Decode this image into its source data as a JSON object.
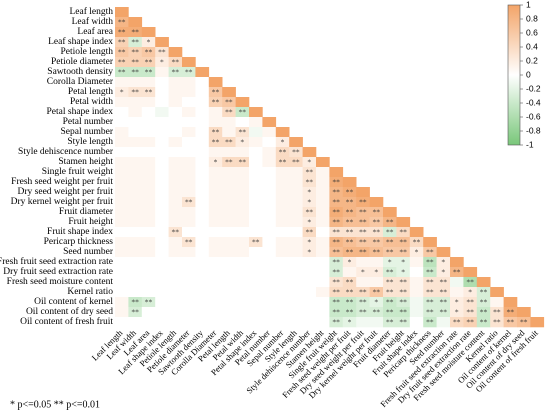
{
  "chart_data": {
    "type": "heatmap",
    "variables": [
      "Leaf length",
      "Leaf width",
      "Leaf area",
      "Leaf shape index",
      "Petiole length",
      "Petiole diameter",
      "Sawtooth density",
      "Corolla Diameter",
      "Petal length",
      "Petal width",
      "Petal shape index",
      "Petal number",
      "Sepal number",
      "Style length",
      "Style dehiscence number",
      "Stamen height",
      "Single fruit weight",
      "Fresh seed weight per fruit",
      "Dry seed weight per fruit",
      "Dry kernel weight per fruit",
      "Fruit diameter",
      "Fruit height",
      "Fruit shape index",
      "Pericarp thickness",
      "Seed number",
      "Fresh fruit seed extraction rate",
      "Dry fruit seed extraction rate",
      "Fresh seed moisture content",
      "Kernel ratio",
      "Oil content of kernel",
      "Oil content of dry seed",
      "Oil content of fresh fruit"
    ],
    "values": [
      [
        1
      ],
      [
        0.8,
        1
      ],
      [
        0.9,
        0.9,
        1
      ],
      [
        0.5,
        -0.3,
        0.2,
        1
      ],
      [
        0.6,
        0.5,
        0.6,
        0.3,
        1
      ],
      [
        0.5,
        0.5,
        0.5,
        0.2,
        0.4,
        1
      ],
      [
        -0.4,
        -0.4,
        -0.4,
        0.1,
        -0.3,
        -0.3,
        1
      ],
      [
        0.1,
        0.1,
        0.1,
        0,
        0.1,
        0.1,
        0,
        1
      ],
      [
        0.2,
        0.3,
        0.3,
        0,
        0.1,
        0.1,
        0,
        0.6,
        1
      ],
      [
        0.1,
        0.1,
        0.1,
        0,
        0.1,
        0,
        0,
        0.5,
        0.6,
        1
      ],
      [
        0,
        0.1,
        0,
        -0.1,
        0,
        0.1,
        0,
        0.1,
        0.4,
        -0.4,
        1
      ],
      [
        0,
        0,
        0,
        0,
        0,
        0,
        0,
        0.1,
        0.1,
        0,
        0.1,
        1
      ],
      [
        0.1,
        0,
        0,
        0,
        0,
        0.1,
        0,
        0.4,
        0.1,
        0.3,
        -0.1,
        0.1,
        1
      ],
      [
        0.1,
        0.1,
        0.1,
        0,
        0.1,
        0,
        0,
        0.4,
        0.4,
        0.2,
        0.1,
        0,
        0.2,
        1
      ],
      [
        0,
        0,
        0,
        0,
        0,
        0,
        0,
        0.1,
        0.1,
        0.1,
        0,
        0.1,
        0.4,
        0.3,
        1
      ],
      [
        0.1,
        0.1,
        0.1,
        0,
        0.1,
        0.1,
        0,
        0.2,
        0.4,
        0.4,
        0,
        0.1,
        0.4,
        0.4,
        0.2,
        1
      ],
      [
        0.1,
        0.1,
        0.1,
        0,
        0.1,
        0.1,
        0,
        0.1,
        0.1,
        0.1,
        0,
        0,
        0.1,
        0.1,
        0.3,
        0.1,
        1
      ],
      [
        0.1,
        0.1,
        0.1,
        0,
        0.1,
        0.1,
        0,
        0.1,
        0.1,
        0.1,
        0,
        0,
        0.1,
        0.1,
        0.3,
        0.1,
        0.9,
        1
      ],
      [
        0.1,
        0.1,
        0.1,
        0,
        0.1,
        0.1,
        0,
        0.1,
        0.1,
        0.1,
        0,
        0,
        0.1,
        0.1,
        0.2,
        0.1,
        0.8,
        0.9,
        1
      ],
      [
        0.1,
        0.1,
        0.1,
        0,
        0.1,
        0.3,
        0,
        0.1,
        0.1,
        0.1,
        0,
        0,
        0.1,
        0.1,
        0.2,
        0.1,
        0.8,
        0.8,
        0.9,
        1
      ],
      [
        0.1,
        0.1,
        0.1,
        0,
        0.1,
        0.1,
        0,
        0.1,
        0.1,
        0.1,
        0,
        0,
        0.1,
        0.1,
        0.3,
        0.1,
        0.9,
        0.8,
        0.7,
        0.7,
        1
      ],
      [
        0.1,
        0.1,
        0.1,
        0,
        0.1,
        0.1,
        0,
        0.1,
        0.1,
        0.1,
        0,
        0,
        0.1,
        0.1,
        0.2,
        0.1,
        0.8,
        0.7,
        0.7,
        0.6,
        0.8,
        1
      ],
      [
        0,
        0,
        0,
        0,
        0.3,
        0,
        0,
        0,
        0,
        0,
        0,
        0,
        0,
        0,
        0.4,
        0,
        0.3,
        0.3,
        0.3,
        0.3,
        -0.3,
        0.4,
        1
      ],
      [
        0.1,
        0.1,
        0.1,
        0,
        0.1,
        0.3,
        0,
        0.1,
        0.1,
        0.1,
        0.3,
        0,
        0.1,
        0.1,
        0.2,
        0.1,
        0.8,
        0.7,
        0.6,
        0.6,
        0.7,
        0.7,
        0.4,
        1
      ],
      [
        0.1,
        0.1,
        0.1,
        0,
        0.1,
        0.1,
        0,
        0.1,
        0.1,
        0.1,
        0,
        0,
        0.1,
        0.1,
        0.2,
        0.1,
        0.7,
        0.8,
        0.8,
        0.7,
        0.6,
        0.6,
        0.2,
        0.6,
        1
      ],
      [
        0,
        0,
        0,
        0,
        0,
        0,
        0,
        0,
        0,
        0,
        0,
        0,
        0,
        0,
        0,
        0,
        -0.3,
        0.2,
        0.1,
        0.1,
        -0.2,
        -0.2,
        0.1,
        -0.5,
        0.2,
        1
      ],
      [
        0,
        0,
        0,
        0,
        0,
        0,
        0,
        0,
        0,
        0,
        0,
        0,
        0,
        0,
        0,
        0,
        -0.3,
        0.1,
        0.2,
        0.2,
        -0.3,
        -0.2,
        0,
        -0.4,
        0.2,
        0.8,
        1
      ],
      [
        0,
        0,
        0,
        0,
        0,
        0,
        0,
        0,
        0,
        0,
        0,
        0,
        0,
        0,
        0,
        0,
        0.3,
        0.4,
        0.1,
        0.1,
        0.3,
        0.3,
        0.1,
        0.3,
        0.3,
        -0.1,
        -0.6,
        1
      ],
      [
        0,
        0,
        0,
        0,
        0,
        0,
        0,
        0,
        0,
        0,
        0,
        0,
        0,
        0,
        0,
        0.1,
        0.4,
        0.4,
        0.4,
        0.6,
        0.3,
        0.3,
        0.1,
        0.3,
        0.3,
        0.1,
        0.2,
        -0.3,
        1
      ],
      [
        0.1,
        -0.4,
        -0.3,
        0,
        0,
        0,
        0,
        0,
        0,
        0,
        0,
        0,
        0,
        0,
        0,
        0,
        -0.4,
        -0.4,
        -0.3,
        -0.2,
        -0.4,
        -0.3,
        -0.1,
        -0.3,
        -0.3,
        0.2,
        0.3,
        -0.3,
        0.1,
        1
      ],
      [
        0.1,
        -0.3,
        0,
        0,
        0,
        0,
        0,
        0,
        0,
        0,
        0,
        0,
        0,
        0,
        0,
        0,
        -0.4,
        -0.4,
        -0.3,
        -0.3,
        -0.4,
        -0.4,
        -0.1,
        -0.3,
        -0.3,
        0.2,
        0.3,
        -0.4,
        0.3,
        0.9,
        1
      ],
      [
        0,
        0,
        0,
        0,
        0,
        0,
        0,
        0,
        0,
        0,
        0,
        0,
        0,
        0,
        0,
        0,
        -0.3,
        -0.2,
        -0.1,
        -0.1,
        -0.3,
        -0.3,
        0,
        -0.4,
        -0.1,
        0.4,
        0.5,
        -0.4,
        0.3,
        0.6,
        0.7,
        1
      ]
    ],
    "significance": [
      [
        null
      ],
      [
        "**",
        null
      ],
      [
        "**",
        "**",
        null
      ],
      [
        "**",
        "**",
        "*",
        null
      ],
      [
        "**",
        "**",
        "**",
        "**",
        null
      ],
      [
        "**",
        "**",
        "**",
        "*",
        "**",
        null
      ],
      [
        "**",
        "**",
        "**",
        null,
        "**",
        "**",
        null
      ],
      [
        null,
        null,
        null,
        null,
        null,
        null,
        null,
        null
      ],
      [
        "*",
        "**",
        "**",
        null,
        null,
        null,
        null,
        "**",
        null
      ],
      [
        null,
        null,
        null,
        null,
        null,
        null,
        null,
        "**",
        "**",
        null
      ],
      [
        null,
        null,
        null,
        null,
        null,
        null,
        null,
        null,
        "**",
        "**",
        null
      ],
      [
        null,
        null,
        null,
        null,
        null,
        null,
        null,
        null,
        null,
        null,
        null,
        null
      ],
      [
        null,
        null,
        null,
        null,
        null,
        null,
        null,
        "**",
        null,
        "**",
        null,
        null,
        null
      ],
      [
        null,
        null,
        null,
        null,
        null,
        null,
        null,
        "**",
        "**",
        "*",
        null,
        null,
        "*",
        null
      ],
      [
        null,
        null,
        null,
        null,
        null,
        null,
        null,
        null,
        null,
        null,
        null,
        null,
        "**",
        "**",
        null
      ],
      [
        null,
        null,
        null,
        null,
        null,
        null,
        null,
        "*",
        "**",
        "**",
        null,
        null,
        "**",
        "**",
        "*",
        null
      ],
      [
        null,
        null,
        null,
        null,
        null,
        null,
        null,
        null,
        null,
        null,
        null,
        null,
        null,
        null,
        "**",
        null,
        null
      ],
      [
        null,
        null,
        null,
        null,
        null,
        null,
        null,
        null,
        null,
        null,
        null,
        null,
        null,
        null,
        "**",
        null,
        "**",
        null
      ],
      [
        null,
        null,
        null,
        null,
        null,
        null,
        null,
        null,
        null,
        null,
        null,
        null,
        null,
        null,
        "*",
        null,
        "**",
        "**",
        null
      ],
      [
        null,
        null,
        null,
        null,
        null,
        "**",
        null,
        null,
        null,
        null,
        null,
        null,
        null,
        null,
        "*",
        null,
        "**",
        "**",
        "**",
        null
      ],
      [
        null,
        null,
        null,
        null,
        null,
        null,
        null,
        null,
        null,
        null,
        null,
        null,
        null,
        null,
        "**",
        null,
        "**",
        "**",
        "**",
        "**",
        null
      ],
      [
        null,
        null,
        null,
        null,
        null,
        null,
        null,
        null,
        null,
        null,
        null,
        null,
        null,
        null,
        "*",
        null,
        "**",
        "**",
        "**",
        "**",
        "**",
        null
      ],
      [
        null,
        null,
        null,
        null,
        "**",
        null,
        null,
        null,
        null,
        null,
        null,
        null,
        null,
        null,
        "**",
        null,
        "**",
        "**",
        "**",
        "**",
        "**",
        "**",
        null
      ],
      [
        null,
        null,
        null,
        null,
        null,
        "**",
        null,
        null,
        null,
        null,
        "**",
        null,
        null,
        null,
        "*",
        null,
        "**",
        "**",
        "**",
        "**",
        "**",
        "**",
        "**",
        null
      ],
      [
        null,
        null,
        null,
        null,
        null,
        null,
        null,
        null,
        null,
        null,
        null,
        null,
        null,
        null,
        "*",
        null,
        "**",
        "**",
        "**",
        "**",
        "**",
        "**",
        "*",
        "**",
        null
      ],
      [
        null,
        null,
        null,
        null,
        null,
        null,
        null,
        null,
        null,
        null,
        null,
        null,
        null,
        null,
        null,
        null,
        "**",
        "*",
        null,
        null,
        "*",
        "*",
        null,
        "**",
        "*",
        null
      ],
      [
        null,
        null,
        null,
        null,
        null,
        null,
        null,
        null,
        null,
        null,
        null,
        null,
        null,
        null,
        null,
        null,
        "**",
        null,
        "*",
        "*",
        "**",
        "*",
        null,
        "**",
        "*",
        "**",
        null
      ],
      [
        null,
        null,
        null,
        null,
        null,
        null,
        null,
        null,
        null,
        null,
        null,
        null,
        null,
        null,
        null,
        null,
        "**",
        "**",
        null,
        null,
        "**",
        "**",
        null,
        "**",
        "**",
        null,
        "**",
        null
      ],
      [
        null,
        null,
        null,
        null,
        null,
        null,
        null,
        null,
        null,
        null,
        null,
        null,
        null,
        null,
        null,
        null,
        "**",
        "**",
        "**",
        "**",
        "**",
        "**",
        null,
        "**",
        "**",
        null,
        "*",
        "**",
        null
      ],
      [
        null,
        "**",
        "**",
        null,
        null,
        null,
        null,
        null,
        null,
        null,
        null,
        null,
        null,
        null,
        null,
        null,
        "**",
        "**",
        "**",
        "*",
        "**",
        "**",
        null,
        "**",
        "**",
        "*",
        "**",
        "**",
        null,
        null
      ],
      [
        null,
        "**",
        null,
        null,
        null,
        null,
        null,
        null,
        null,
        null,
        null,
        null,
        null,
        null,
        null,
        null,
        "**",
        "**",
        "**",
        "**",
        "**",
        "**",
        null,
        "**",
        "**",
        "*",
        "**",
        "**",
        "**",
        "**",
        null
      ],
      [
        null,
        null,
        null,
        null,
        null,
        null,
        null,
        null,
        null,
        null,
        null,
        null,
        null,
        null,
        null,
        null,
        "**",
        "*",
        null,
        null,
        "**",
        "**",
        null,
        "**",
        null,
        "**",
        "**",
        "**",
        "**",
        "**",
        "**",
        null
      ]
    ],
    "colorscale": {
      "positive": "#f3a468",
      "zero": "#ffffff",
      "negative": "#79c77a"
    },
    "clim": [
      -1,
      1
    ],
    "cticks": [
      1,
      0.8,
      0.6,
      0.4,
      0.2,
      0,
      -0.2,
      -0.4,
      -0.6,
      -0.8,
      -1
    ],
    "note": "* p<=0.05  ** p<=0.01"
  }
}
